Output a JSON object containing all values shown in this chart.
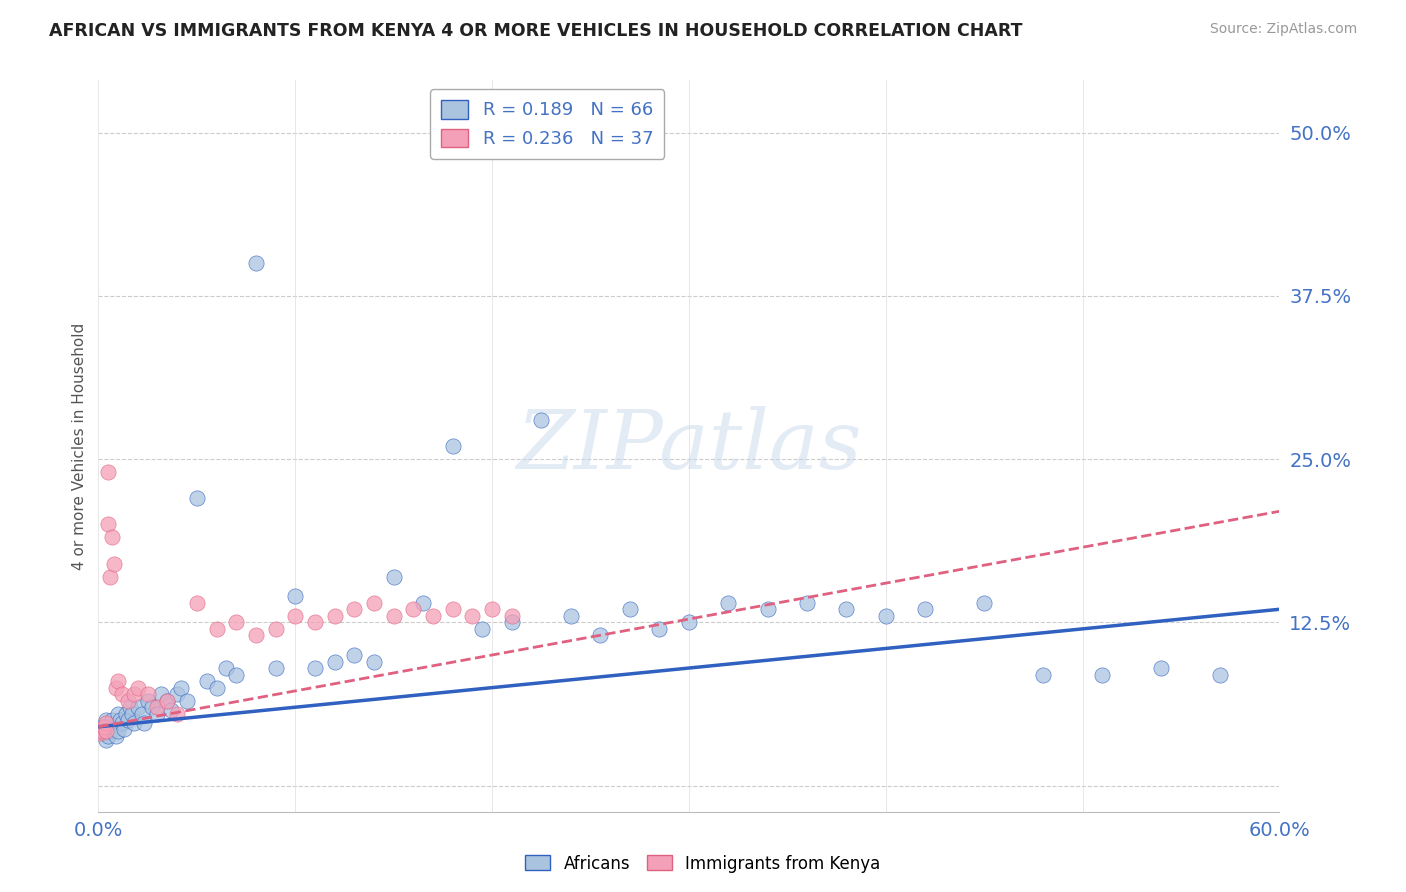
{
  "title": "AFRICAN VS IMMIGRANTS FROM KENYA 4 OR MORE VEHICLES IN HOUSEHOLD CORRELATION CHART",
  "source": "Source: ZipAtlas.com",
  "ylabel": "4 or more Vehicles in Household",
  "xlim": [
    0.0,
    0.6
  ],
  "ylim": [
    -0.02,
    0.54
  ],
  "africans_R": 0.189,
  "africans_N": 66,
  "kenya_R": 0.236,
  "kenya_N": 37,
  "africans_color": "#aac4e0",
  "kenya_color": "#f4a0b8",
  "africans_line_color": "#3060c0",
  "kenya_line_color": "#e06080",
  "africans_x": [
    0.002,
    0.003,
    0.004,
    0.004,
    0.005,
    0.005,
    0.006,
    0.007,
    0.008,
    0.009,
    0.01,
    0.01,
    0.011,
    0.012,
    0.013,
    0.014,
    0.015,
    0.016,
    0.017,
    0.018,
    0.02,
    0.022,
    0.023,
    0.025,
    0.027,
    0.03,
    0.032,
    0.035,
    0.037,
    0.04,
    0.042,
    0.045,
    0.05,
    0.055,
    0.06,
    0.065,
    0.07,
    0.08,
    0.09,
    0.1,
    0.11,
    0.12,
    0.13,
    0.14,
    0.15,
    0.165,
    0.18,
    0.195,
    0.21,
    0.225,
    0.24,
    0.255,
    0.27,
    0.285,
    0.3,
    0.32,
    0.34,
    0.36,
    0.38,
    0.4,
    0.42,
    0.45,
    0.48,
    0.51,
    0.54,
    0.57
  ],
  "africans_y": [
    0.045,
    0.04,
    0.05,
    0.035,
    0.045,
    0.038,
    0.042,
    0.05,
    0.043,
    0.038,
    0.055,
    0.042,
    0.05,
    0.048,
    0.043,
    0.055,
    0.05,
    0.06,
    0.055,
    0.048,
    0.06,
    0.055,
    0.048,
    0.065,
    0.06,
    0.055,
    0.07,
    0.065,
    0.058,
    0.07,
    0.075,
    0.065,
    0.22,
    0.08,
    0.075,
    0.09,
    0.085,
    0.4,
    0.09,
    0.145,
    0.09,
    0.095,
    0.1,
    0.095,
    0.16,
    0.14,
    0.26,
    0.12,
    0.125,
    0.28,
    0.13,
    0.115,
    0.135,
    0.12,
    0.125,
    0.14,
    0.135,
    0.14,
    0.135,
    0.13,
    0.135,
    0.14,
    0.085,
    0.085,
    0.09,
    0.085
  ],
  "kenya_x": [
    0.001,
    0.002,
    0.003,
    0.004,
    0.004,
    0.005,
    0.005,
    0.006,
    0.007,
    0.008,
    0.009,
    0.01,
    0.012,
    0.015,
    0.018,
    0.02,
    0.025,
    0.03,
    0.035,
    0.04,
    0.05,
    0.06,
    0.07,
    0.08,
    0.09,
    0.1,
    0.11,
    0.12,
    0.13,
    0.14,
    0.15,
    0.16,
    0.17,
    0.18,
    0.19,
    0.2,
    0.21
  ],
  "kenya_y": [
    0.04,
    0.042,
    0.045,
    0.048,
    0.042,
    0.24,
    0.2,
    0.16,
    0.19,
    0.17,
    0.075,
    0.08,
    0.07,
    0.065,
    0.07,
    0.075,
    0.07,
    0.06,
    0.065,
    0.055,
    0.14,
    0.12,
    0.125,
    0.115,
    0.12,
    0.13,
    0.125,
    0.13,
    0.135,
    0.14,
    0.13,
    0.135,
    0.13,
    0.135,
    0.13,
    0.135,
    0.13
  ],
  "yticks": [
    0.0,
    0.125,
    0.25,
    0.375,
    0.5
  ],
  "ytick_labels": [
    "",
    "12.5%",
    "25.0%",
    "37.5%",
    "50.0%"
  ]
}
